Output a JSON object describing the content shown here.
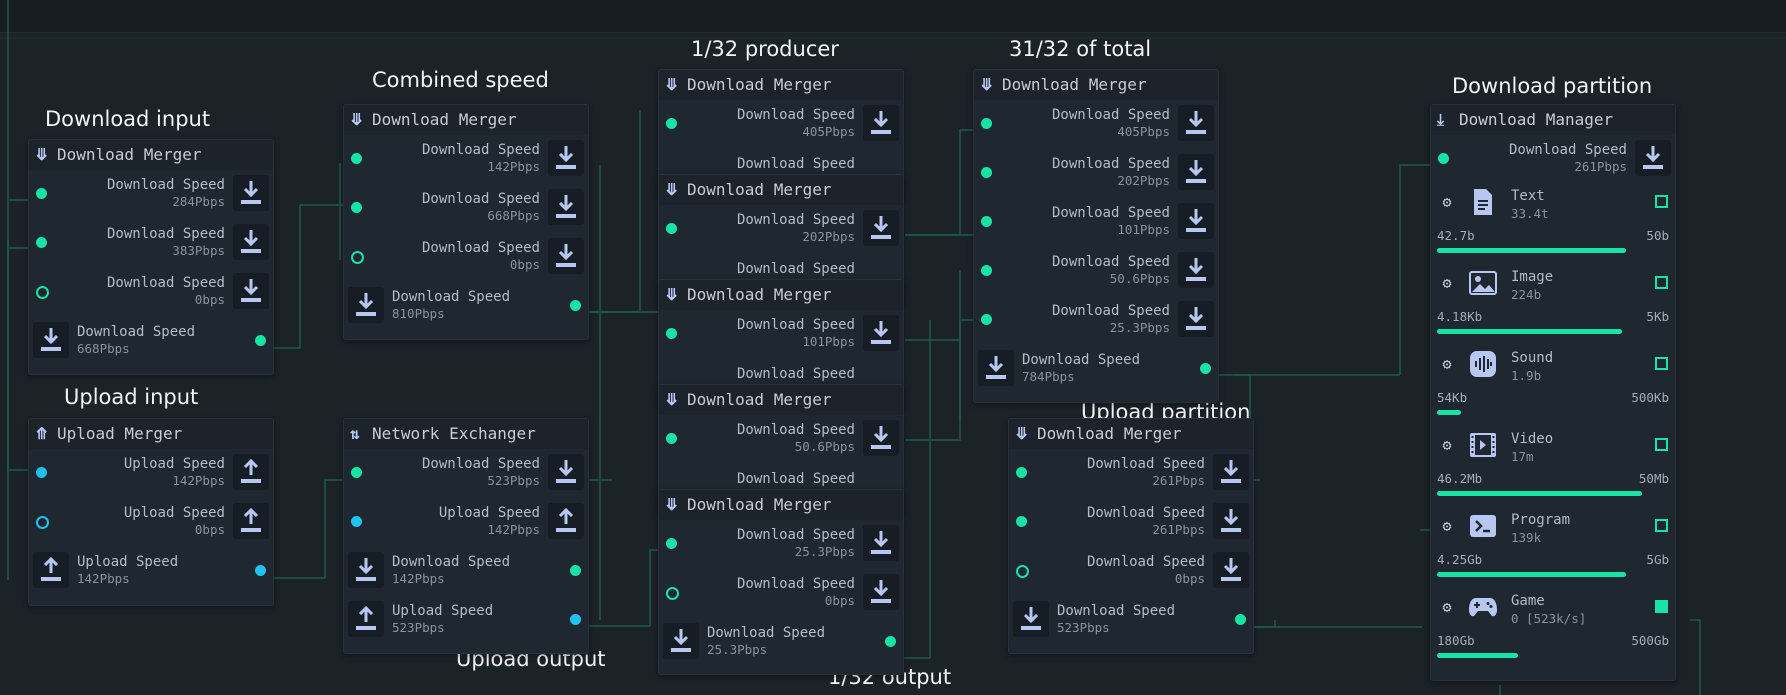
{
  "annotations": {
    "download_input": "Download input",
    "combined_speed": "Combined speed",
    "one_32_producer": "1/32 producer",
    "thirtyone_32_total": "31/32 of total",
    "download_partition": "Download partition",
    "upload_input": "Upload input",
    "upload_partition": "Upload partition",
    "upload_output": "Upload output",
    "one_32_output": "1/32 output"
  },
  "node_a": {
    "title": "Download Merger",
    "inputs": [
      {
        "label": "Download Speed",
        "value": "284Pbps"
      },
      {
        "label": "Download Speed",
        "value": "383Pbps"
      },
      {
        "label": "Download Speed",
        "value": "0bps"
      }
    ],
    "output": {
      "label": "Download Speed",
      "value": "668Pbps"
    }
  },
  "node_b": {
    "title": "Download Merger",
    "inputs": [
      {
        "label": "Download Speed",
        "value": "142Pbps"
      },
      {
        "label": "Download Speed",
        "value": "668Pbps"
      },
      {
        "label": "Download Speed",
        "value": "0bps"
      }
    ],
    "output": {
      "label": "Download Speed",
      "value": "810Pbps"
    }
  },
  "node_c": {
    "title": "Upload Merger",
    "inputs": [
      {
        "label": "Upload Speed",
        "value": "142Pbps"
      },
      {
        "label": "Upload Speed",
        "value": "0bps"
      }
    ],
    "output": {
      "label": "Upload Speed",
      "value": "142Pbps"
    }
  },
  "node_d": {
    "title": "Network Exchanger",
    "inputs": [
      {
        "label": "Download Speed",
        "value": "523Pbps"
      },
      {
        "label": "Upload Speed",
        "value": "142Pbps"
      }
    ],
    "outputs": [
      {
        "label": "Download Speed",
        "value": "142Pbps"
      },
      {
        "label": "Upload Speed",
        "value": "523Pbps"
      }
    ]
  },
  "stack": [
    {
      "title": "Download Merger",
      "label": "Download Speed",
      "value": "405Pbps",
      "peek": "Download Speed"
    },
    {
      "title": "Download Merger",
      "label": "Download Speed",
      "value": "202Pbps",
      "peek": "Download Speed"
    },
    {
      "title": "Download Merger",
      "label": "Download Speed",
      "value": "101Pbps",
      "peek": "Download Speed"
    },
    {
      "title": "Download Merger",
      "label": "Download Speed",
      "value": "50.6Pbps",
      "peek": "Download Speed"
    },
    {
      "title": "Download Merger",
      "label": "Download Speed",
      "value": "25.3Pbps",
      "in2_label": "Download Speed",
      "in2_value": "0bps",
      "out_label": "Download Speed",
      "out_value": "25.3Pbps"
    }
  ],
  "node_f": {
    "title": "Download Merger",
    "inputs": [
      {
        "label": "Download Speed",
        "value": "405Pbps"
      },
      {
        "label": "Download Speed",
        "value": "202Pbps"
      },
      {
        "label": "Download Speed",
        "value": "101Pbps"
      },
      {
        "label": "Download Speed",
        "value": "50.6Pbps"
      },
      {
        "label": "Download Speed",
        "value": "25.3Pbps"
      }
    ],
    "output": {
      "label": "Download Speed",
      "value": "784Pbps"
    }
  },
  "node_g": {
    "title": "Download Merger",
    "inputs": [
      {
        "label": "Download Speed",
        "value": "261Pbps"
      },
      {
        "label": "Download Speed",
        "value": "261Pbps"
      },
      {
        "label": "Download Speed",
        "value": "0bps"
      }
    ],
    "output": {
      "label": "Download Speed",
      "value": "523Pbps"
    }
  },
  "manager": {
    "title": "Download Manager",
    "input": {
      "label": "Download Speed",
      "value": "261Pbps"
    },
    "categories": [
      {
        "name": "Text",
        "sub": "33.4t",
        "min": "42.7b",
        "max": "50b",
        "fill": 0.86,
        "icon": "document-icon",
        "checked": false
      },
      {
        "name": "Image",
        "sub": "224b",
        "min": "4.18Kb",
        "max": "5Kb",
        "fill": 0.84,
        "icon": "image-icon",
        "checked": false
      },
      {
        "name": "Sound",
        "sub": "1.9b",
        "min": "54Kb",
        "max": "500Kb",
        "fill": 0.11,
        "icon": "sound-icon",
        "checked": false
      },
      {
        "name": "Video",
        "sub": "17m",
        "min": "46.2Mb",
        "max": "50Mb",
        "fill": 0.93,
        "icon": "video-icon",
        "checked": false
      },
      {
        "name": "Program",
        "sub": "139k",
        "min": "4.25Gb",
        "max": "5Gb",
        "fill": 0.86,
        "icon": "terminal-icon",
        "checked": false
      },
      {
        "name": "Game",
        "sub": "0 [523k/s]",
        "min": "180Gb",
        "max": "500Gb",
        "fill": 0.37,
        "icon": "gamepad-icon",
        "checked": true
      }
    ]
  },
  "colors": {
    "accent_green": "#19e3a4",
    "accent_blue": "#1fc2f2",
    "icon_blue": "#b7c7f2"
  }
}
